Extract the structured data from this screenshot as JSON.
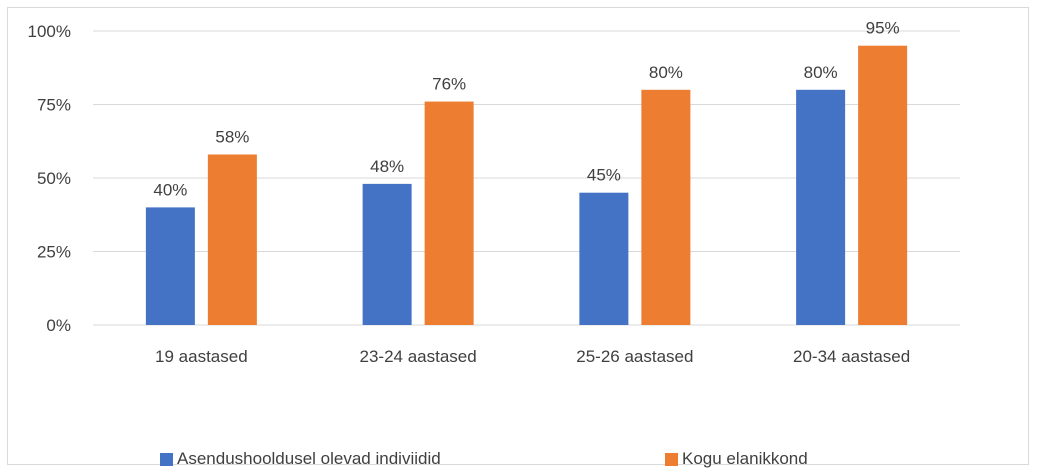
{
  "chart_data": {
    "type": "bar",
    "title": "",
    "xlabel": "",
    "ylabel": "",
    "categories": [
      "19 aastased",
      "23-24 aastased",
      "25-26 aastased",
      "20-34 aastased"
    ],
    "series": [
      {
        "name": "Asendushooldusel olevad indiviidid",
        "color": "#4472c4",
        "values": [
          40,
          48,
          45,
          80
        ],
        "labels": [
          "40%",
          "48%",
          "45%",
          "80%"
        ]
      },
      {
        "name": "Kogu elanikkond",
        "color": "#ed7d31",
        "values": [
          58,
          76,
          80,
          95
        ],
        "labels": [
          "58%",
          "76%",
          "80%",
          "95%"
        ]
      }
    ],
    "ylim": [
      0,
      100
    ],
    "yticks": [
      0,
      25,
      50,
      75,
      100
    ],
    "ytick_labels": [
      "0%",
      "25%",
      "50%",
      "75%",
      "100%"
    ],
    "grid": true,
    "legend_position": "bottom"
  }
}
